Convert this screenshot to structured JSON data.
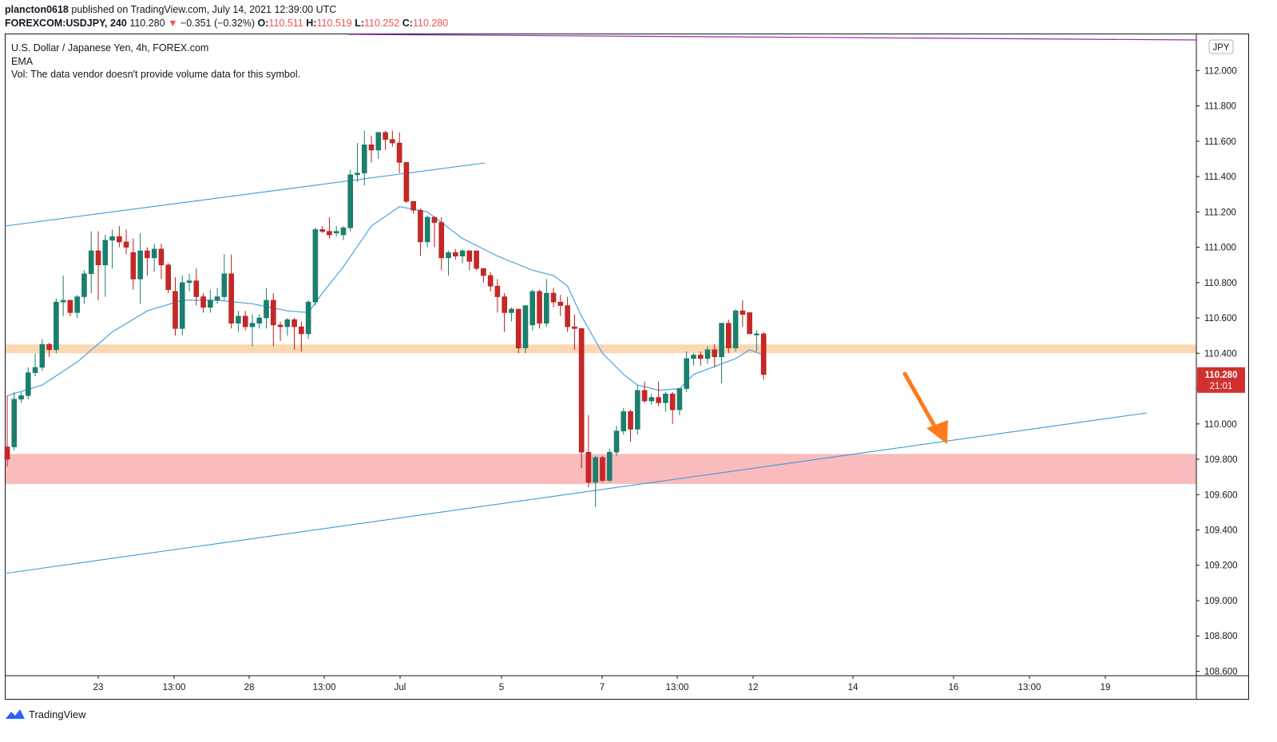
{
  "header": {
    "author": "plancton0618",
    "published_text": "published on TradingView.com, July 14, 2021 12:39:00 UTC",
    "symbol": "FOREXCOM:USDJPY, 240",
    "last_price": "110.280",
    "change": "−0.351 (−0.32%)",
    "open_label": "O:",
    "open": "110.511",
    "high_label": "H:",
    "high": "110.519",
    "low_label": "L:",
    "low": "110.252",
    "close_label": "C:",
    "close": "110.280"
  },
  "legend": {
    "title": "U.S. Dollar / Japanese Yen, 4h, FOREX.com",
    "ema": "EMA",
    "vol": "Vol: The data vendor doesn't provide volume data for this symbol."
  },
  "footer": {
    "brand": "TradingView"
  },
  "colors": {
    "up": "#26a69a",
    "up_body": "#1a7f6e",
    "down": "#c62828",
    "ema": "#4aa3df",
    "trendline": "#3a9ad9",
    "resistance_zone": "#f9c99a",
    "support_zone": "#f8b4b4",
    "arrow": "#ff7a1a",
    "purple_line": "#9c27b0",
    "price_tag": "#d32f2f"
  },
  "chart_data": {
    "type": "candlestick",
    "currency": "JPY",
    "y_ticks": [
      "112.000",
      "111.800",
      "111.600",
      "111.400",
      "111.200",
      "111.000",
      "110.800",
      "110.600",
      "110.400",
      "110.200",
      "110.000",
      "109.800",
      "109.600",
      "109.400",
      "109.200",
      "109.000",
      "108.800",
      "108.600"
    ],
    "ylim": [
      108.575,
      112.205
    ],
    "x_ticks": [
      "23",
      "13:00",
      "28",
      "13:00",
      "Jul",
      "5",
      "7",
      "13:00",
      "12",
      "14",
      "16",
      "13:00",
      "19"
    ],
    "current_price": "110.280",
    "countdown": "21:01",
    "zones": [
      {
        "from": 110.4,
        "to": 110.45,
        "kind": "resistance"
      },
      {
        "from": 109.66,
        "to": 109.83,
        "kind": "support"
      }
    ],
    "candles": [
      [
        109.87,
        110.16,
        109.76,
        109.8
      ],
      [
        109.87,
        110.18,
        109.85,
        110.14
      ],
      [
        110.14,
        110.18,
        110.12,
        110.16
      ],
      [
        110.16,
        110.32,
        110.14,
        110.29
      ],
      [
        110.29,
        110.4,
        110.27,
        110.32
      ],
      [
        110.32,
        110.48,
        110.3,
        110.45
      ],
      [
        110.45,
        110.46,
        110.38,
        110.42
      ],
      [
        110.42,
        110.71,
        110.4,
        110.69
      ],
      [
        110.69,
        110.84,
        110.61,
        110.7
      ],
      [
        110.7,
        110.7,
        110.61,
        110.63
      ],
      [
        110.63,
        110.73,
        110.6,
        110.72
      ],
      [
        110.72,
        110.87,
        110.68,
        110.85
      ],
      [
        110.85,
        111.09,
        110.74,
        110.98
      ],
      [
        110.98,
        111.09,
        110.7,
        110.9
      ],
      [
        110.9,
        111.07,
        110.72,
        111.04
      ],
      [
        111.04,
        111.1,
        110.88,
        111.06
      ],
      [
        111.06,
        111.12,
        111.0,
        111.03
      ],
      [
        111.03,
        111.1,
        110.96,
        111.0
      ],
      [
        110.97,
        111.05,
        110.76,
        110.82
      ],
      [
        110.82,
        111.08,
        110.68,
        110.98
      ],
      [
        110.98,
        111.0,
        110.84,
        110.94
      ],
      [
        110.94,
        111.02,
        110.86,
        110.99
      ],
      [
        110.99,
        111.02,
        110.82,
        110.9
      ],
      [
        110.9,
        110.91,
        110.74,
        110.76
      ],
      [
        110.75,
        110.83,
        110.5,
        110.54
      ],
      [
        110.54,
        110.84,
        110.5,
        110.8
      ],
      [
        110.8,
        110.85,
        110.75,
        110.81
      ],
      [
        110.81,
        110.88,
        110.67,
        110.72
      ],
      [
        110.72,
        110.74,
        110.63,
        110.66
      ],
      [
        110.66,
        110.76,
        110.63,
        110.7
      ],
      [
        110.7,
        110.77,
        110.68,
        110.72
      ],
      [
        110.72,
        110.96,
        110.7,
        110.85
      ],
      [
        110.85,
        110.96,
        110.54,
        110.57
      ],
      [
        110.57,
        110.64,
        110.52,
        110.61
      ],
      [
        110.61,
        110.64,
        110.53,
        110.55
      ],
      [
        110.55,
        110.62,
        110.44,
        110.57
      ],
      [
        110.57,
        110.62,
        110.54,
        110.6
      ],
      [
        110.6,
        110.77,
        110.54,
        110.7
      ],
      [
        110.7,
        110.74,
        110.44,
        110.56
      ],
      [
        110.56,
        110.58,
        110.47,
        110.55
      ],
      [
        110.55,
        110.6,
        110.5,
        110.59
      ],
      [
        110.59,
        110.6,
        110.42,
        110.55
      ],
      [
        110.55,
        110.58,
        110.41,
        110.51
      ],
      [
        110.51,
        110.7,
        110.48,
        110.69
      ],
      [
        110.69,
        111.11,
        110.67,
        111.1
      ],
      [
        111.1,
        111.12,
        111.08,
        111.09
      ],
      [
        111.09,
        111.17,
        111.05,
        111.07
      ],
      [
        111.08,
        111.12,
        111.06,
        111.09
      ],
      [
        111.07,
        111.12,
        111.04,
        111.11
      ],
      [
        111.11,
        111.44,
        111.09,
        111.41
      ],
      [
        111.41,
        111.59,
        111.37,
        111.42
      ],
      [
        111.42,
        111.66,
        111.35,
        111.58
      ],
      [
        111.58,
        111.63,
        111.48,
        111.55
      ],
      [
        111.55,
        111.65,
        111.5,
        111.65
      ],
      [
        111.65,
        111.66,
        111.55,
        111.61
      ],
      [
        111.61,
        111.66,
        111.57,
        111.59
      ],
      [
        111.59,
        111.65,
        111.42,
        111.48
      ],
      [
        111.48,
        111.48,
        111.25,
        111.26
      ],
      [
        111.26,
        111.26,
        111.19,
        111.21
      ],
      [
        111.21,
        111.22,
        110.95,
        111.03
      ],
      [
        111.03,
        111.18,
        111.0,
        111.17
      ],
      [
        111.17,
        111.17,
        111.0,
        111.14
      ],
      [
        111.14,
        111.17,
        110.87,
        110.94
      ],
      [
        110.94,
        110.98,
        110.84,
        110.97
      ],
      [
        110.97,
        110.99,
        110.93,
        110.95
      ],
      [
        110.95,
        110.99,
        110.91,
        110.98
      ],
      [
        110.98,
        110.98,
        110.87,
        110.92
      ],
      [
        110.98,
        110.98,
        110.87,
        110.88
      ],
      [
        110.88,
        110.88,
        110.8,
        110.84
      ],
      [
        110.84,
        110.86,
        110.75,
        110.78
      ],
      [
        110.78,
        110.82,
        110.63,
        110.72
      ],
      [
        110.72,
        110.74,
        110.52,
        110.63
      ],
      [
        110.63,
        110.66,
        110.58,
        110.65
      ],
      [
        110.65,
        110.65,
        110.4,
        110.43
      ],
      [
        110.43,
        110.65,
        110.4,
        110.67
      ],
      [
        110.56,
        110.76,
        110.53,
        110.75
      ],
      [
        110.75,
        110.76,
        110.54,
        110.57
      ],
      [
        110.57,
        110.82,
        110.55,
        110.74
      ],
      [
        110.74,
        110.77,
        110.66,
        110.69
      ],
      [
        110.69,
        110.73,
        110.61,
        110.67
      ],
      [
        110.67,
        110.72,
        110.52,
        110.55
      ],
      [
        110.55,
        110.62,
        110.42,
        110.54
      ],
      [
        110.54,
        110.54,
        109.75,
        109.84
      ],
      [
        109.84,
        110.05,
        109.64,
        109.67
      ],
      [
        109.67,
        109.82,
        109.53,
        109.81
      ],
      [
        109.81,
        109.82,
        109.67,
        109.68
      ],
      [
        109.68,
        109.86,
        109.67,
        109.84
      ],
      [
        109.84,
        109.99,
        109.82,
        109.96
      ],
      [
        109.96,
        110.09,
        109.94,
        110.07
      ],
      [
        110.07,
        110.08,
        109.9,
        109.97
      ],
      [
        109.97,
        110.22,
        109.94,
        110.19
      ],
      [
        110.19,
        110.24,
        110.12,
        110.13
      ],
      [
        110.13,
        110.17,
        110.11,
        110.15
      ],
      [
        110.15,
        110.24,
        110.1,
        110.12
      ],
      [
        110.12,
        110.18,
        110.07,
        110.17
      ],
      [
        110.17,
        110.18,
        110.0,
        110.08
      ],
      [
        110.08,
        110.2,
        110.05,
        110.2
      ],
      [
        110.2,
        110.41,
        110.18,
        110.37
      ],
      [
        110.37,
        110.4,
        110.33,
        110.39
      ],
      [
        110.39,
        110.41,
        110.33,
        110.37
      ],
      [
        110.37,
        110.44,
        110.34,
        110.42
      ],
      [
        110.42,
        110.45,
        110.32,
        110.38
      ],
      [
        110.38,
        110.57,
        110.23,
        110.57
      ],
      [
        110.57,
        110.59,
        110.4,
        110.43
      ],
      [
        110.43,
        110.65,
        110.41,
        110.64
      ],
      [
        110.64,
        110.7,
        110.55,
        110.62
      ],
      [
        110.63,
        110.63,
        110.51,
        110.51
      ],
      [
        110.51,
        110.53,
        110.41,
        110.51
      ],
      [
        110.51,
        110.52,
        110.25,
        110.28
      ]
    ],
    "ema": [
      [
        0,
        110.16
      ],
      [
        5,
        110.22
      ],
      [
        10,
        110.35
      ],
      [
        15,
        110.52
      ],
      [
        20,
        110.64
      ],
      [
        25,
        110.7
      ],
      [
        30,
        110.7
      ],
      [
        35,
        110.68
      ],
      [
        40,
        110.64
      ],
      [
        43,
        110.63
      ],
      [
        45,
        110.74
      ],
      [
        48,
        110.89
      ],
      [
        52,
        111.12
      ],
      [
        56,
        111.23
      ],
      [
        60,
        111.2
      ],
      [
        65,
        111.05
      ],
      [
        70,
        110.95
      ],
      [
        75,
        110.87
      ],
      [
        78,
        110.84
      ],
      [
        80,
        110.78
      ],
      [
        82,
        110.61
      ],
      [
        85,
        110.4
      ],
      [
        88,
        110.28
      ],
      [
        90,
        110.22
      ],
      [
        93,
        110.19
      ],
      [
        96,
        110.2
      ],
      [
        98,
        110.28
      ],
      [
        100,
        110.31
      ],
      [
        102,
        110.34
      ],
      [
        104,
        110.37
      ],
      [
        106,
        110.42
      ],
      [
        108,
        110.39
      ]
    ]
  }
}
